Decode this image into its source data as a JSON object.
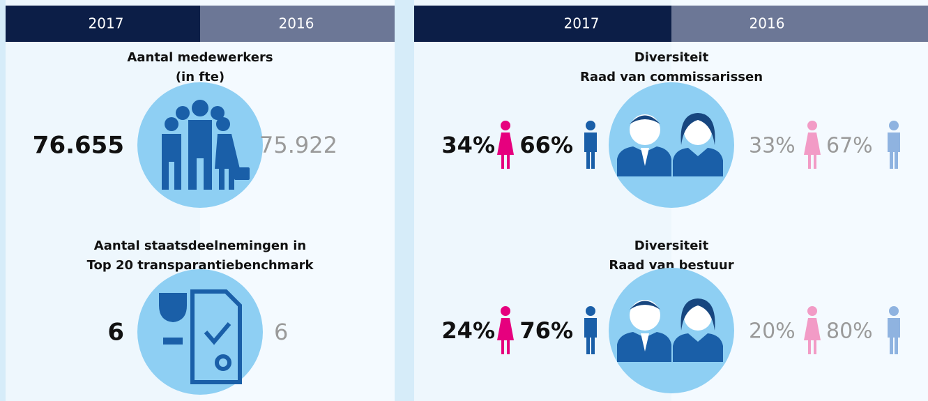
{
  "left": {
    "years": [
      "2017",
      "2016"
    ],
    "items": [
      {
        "title": [
          "Aantal medewerkers",
          "(in fte)"
        ],
        "value_2017": "76.655",
        "value_2016": "75.922"
      },
      {
        "title": [
          "Aantal staatsdeelnemingen in",
          "Top 20 transparantiebenchmark"
        ],
        "value_2017": "6",
        "value_2016": "6"
      }
    ]
  },
  "right": {
    "years": [
      "2017",
      "2016"
    ],
    "items": [
      {
        "title": [
          "Diversiteit",
          "Raad van commissarissen"
        ],
        "women_2017": "34%",
        "men_2017": "66%",
        "women_2016": "33%",
        "men_2016": "67%"
      },
      {
        "title": [
          "Diversiteit",
          "Raad van bestuur"
        ],
        "women_2017": "24%",
        "men_2017": "76%",
        "women_2016": "20%",
        "men_2016": "80%"
      }
    ]
  }
}
